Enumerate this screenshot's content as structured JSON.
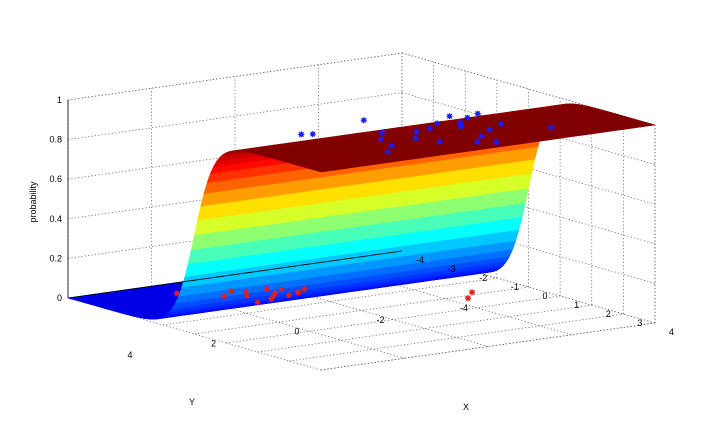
{
  "chart_data": {
    "type": "surface",
    "surface": {
      "function": "logistic",
      "description_of_shape": "sigmoid ramp rising from 0 to 1 across the X axis near X=0",
      "colormap": "jet"
    },
    "xlabel": "X",
    "ylabel": "Y",
    "zlabel": "probability",
    "xlim": [
      -4,
      4
    ],
    "ylim": [
      -4,
      4
    ],
    "zlim": [
      0,
      1
    ],
    "x_ticks": [
      "-4",
      "-3",
      "-2",
      "-1",
      "0",
      "1",
      "2",
      "3",
      "4"
    ],
    "y_ticks": [
      "4",
      "2",
      "0",
      "-2",
      "-4"
    ],
    "z_ticks": [
      "0",
      "0.2",
      "0.4",
      "0.6",
      "0.8",
      "1"
    ],
    "grid": true,
    "series": [
      {
        "color": "#1a1aff",
        "marker": "star",
        "points": [
          [
            1.7,
            0.8,
            1
          ],
          [
            2.0,
            0.2,
            1
          ],
          [
            1.6,
            -0.6,
            1
          ],
          [
            1.9,
            -0.2,
            1
          ],
          [
            2.1,
            -0.8,
            1
          ],
          [
            1.5,
            -1.4,
            1
          ],
          [
            1.8,
            -1.0,
            1
          ],
          [
            2.3,
            -1.6,
            1
          ],
          [
            1.2,
            -1.2,
            1
          ],
          [
            1.3,
            -1.8,
            1
          ],
          [
            2.2,
            1.2,
            1
          ],
          [
            2.5,
            0.6,
            1
          ],
          [
            2.6,
            -1.1,
            1
          ],
          [
            3.0,
            -0.6,
            1
          ],
          [
            3.4,
            -0.2,
            1
          ],
          [
            3.0,
            0.4,
            1
          ],
          [
            2.8,
            1.4,
            1
          ],
          [
            3.2,
            1.8,
            1
          ],
          [
            3.6,
            -0.5,
            1
          ],
          [
            3.1,
            -2.2,
            1
          ],
          [
            0.6,
            0.4,
            1
          ],
          [
            1.1,
            2.0,
            1
          ],
          [
            1.0,
            2.2,
            1
          ]
        ]
      },
      {
        "color": "#e02020",
        "marker": "star",
        "points": [
          [
            -2.5,
            1.4,
            0
          ],
          [
            -2.3,
            1.0,
            0
          ],
          [
            -2.0,
            0.6,
            0
          ],
          [
            -2.6,
            0.8,
            0
          ],
          [
            -2.2,
            0.4,
            0
          ],
          [
            -2.4,
            0.1,
            0
          ],
          [
            -1.8,
            0.8,
            0
          ],
          [
            -2.0,
            0.0,
            0
          ],
          [
            -2.6,
            0.3,
            0
          ],
          [
            -2.8,
            1.0,
            0
          ],
          [
            -1.9,
            0.3,
            0
          ],
          [
            -2.2,
            -0.3,
            0
          ],
          [
            -1.7,
            1.2,
            0
          ],
          [
            -3.2,
            2.0,
            0
          ],
          [
            0.2,
            -2.4,
            0
          ],
          [
            -0.2,
            -2.8,
            0
          ]
        ]
      }
    ]
  }
}
